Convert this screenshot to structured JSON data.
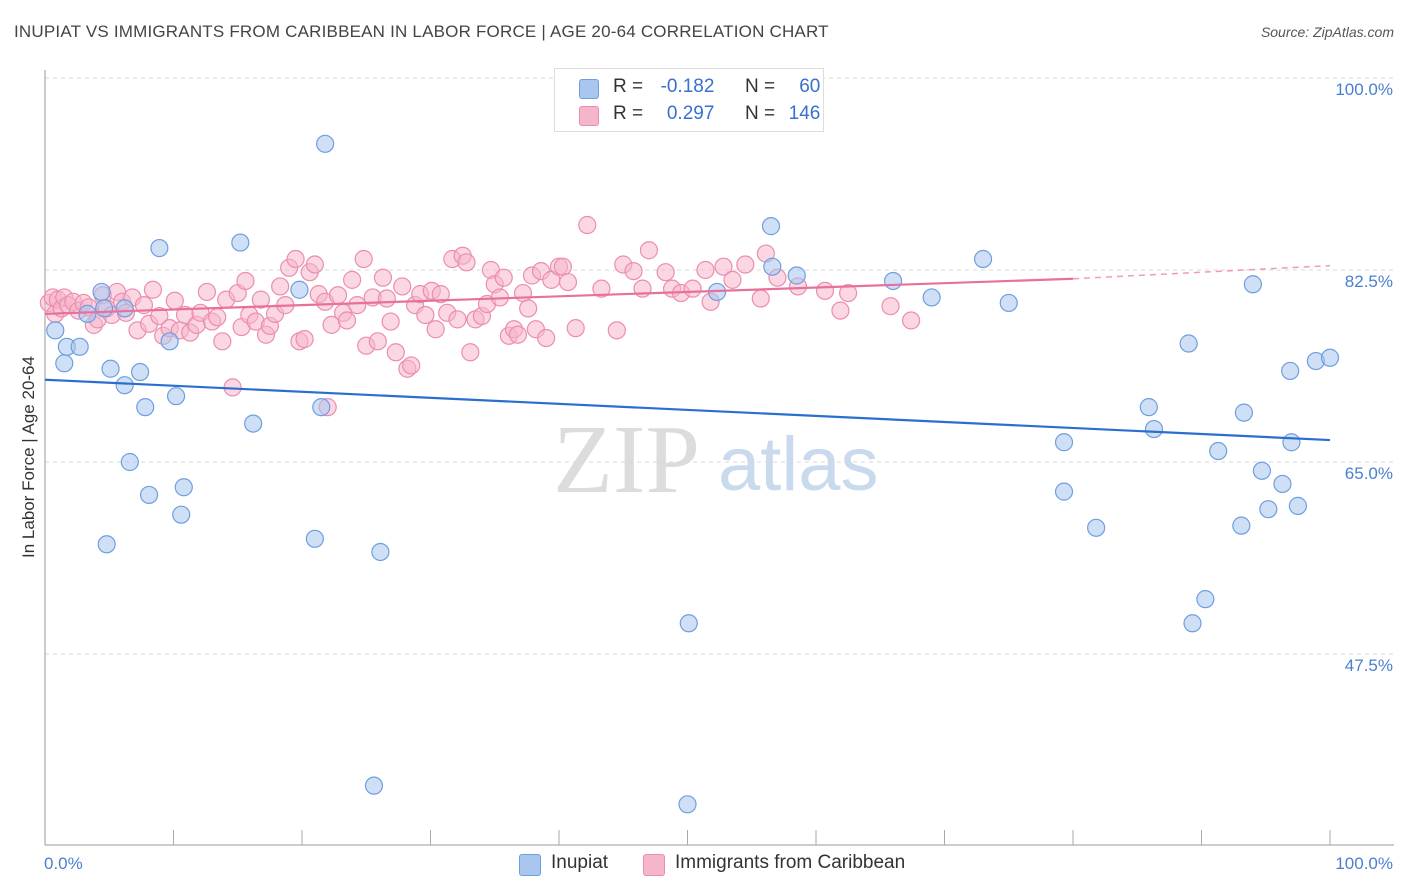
{
  "header": {
    "title": "INUPIAT VS IMMIGRANTS FROM CARIBBEAN IN LABOR FORCE | AGE 20-64 CORRELATION CHART",
    "source": "Source: ZipAtlas.com"
  },
  "watermark": {
    "zip": "ZIP",
    "atlas": "atlas"
  },
  "legend_top": {
    "rows": [
      {
        "r_label": "R =",
        "r_value": "-0.182",
        "n_label": "N =",
        "n_value": "60"
      },
      {
        "r_label": "R =",
        "r_value": "0.297",
        "n_label": "N =",
        "n_value": "146"
      }
    ]
  },
  "legend_bottom": {
    "items": [
      {
        "label": "Inupiat"
      },
      {
        "label": "Immigrants from Caribbean"
      }
    ]
  },
  "colors": {
    "blue_fill": "#a8c6ee",
    "blue_stroke": "#6e9ee0",
    "blue_line": "#2a6fd0",
    "pink_fill": "#f5b6ca",
    "pink_stroke": "#ec8db0",
    "pink_line": "#e8709c",
    "tick_text": "#4a7fd0",
    "grid": "#d8d8d8"
  },
  "chart_data": {
    "type": "scatter",
    "title": "INUPIAT VS IMMIGRANTS FROM CARIBBEAN IN LABOR FORCE | AGE 20-64 CORRELATION CHART",
    "xlabel": "",
    "ylabel": "In Labor Force | Age 20-64",
    "xlim": [
      0,
      100
    ],
    "ylim": [
      30,
      100
    ],
    "x_tick_labels": [
      "0.0%",
      "100.0%"
    ],
    "y_ticks": [
      47.5,
      65.0,
      82.5,
      100.0
    ],
    "y_tick_labels": [
      "47.5%",
      "65.0%",
      "82.5%",
      "100.0%"
    ],
    "grid": true,
    "legend_position": "top-center",
    "series": [
      {
        "name": "Inupiat",
        "color": "#a8c6ee",
        "trend": {
          "x": [
            0,
            100
          ],
          "y": [
            72.5,
            67.0
          ]
        },
        "points": [
          [
            0.8,
            77
          ],
          [
            1.5,
            74
          ],
          [
            1.7,
            75.5
          ],
          [
            2.7,
            75.5
          ],
          [
            3.3,
            78.5
          ],
          [
            4.4,
            80.5
          ],
          [
            4.6,
            79
          ],
          [
            4.8,
            57.5
          ],
          [
            5.1,
            73.5
          ],
          [
            6.2,
            79
          ],
          [
            6.2,
            72
          ],
          [
            6.6,
            65
          ],
          [
            7.4,
            73.2
          ],
          [
            7.8,
            70
          ],
          [
            8.1,
            62
          ],
          [
            8.9,
            84.5
          ],
          [
            9.7,
            76
          ],
          [
            10.2,
            71
          ],
          [
            10.8,
            62.7
          ],
          [
            10.6,
            60.2
          ],
          [
            15.2,
            85
          ],
          [
            16.2,
            68.5
          ],
          [
            19.8,
            80.7
          ],
          [
            21.0,
            58
          ],
          [
            21.5,
            70
          ],
          [
            21.8,
            94
          ],
          [
            25.6,
            35.5
          ],
          [
            26.1,
            56.8
          ],
          [
            50.0,
            33.8
          ],
          [
            50.1,
            50.3
          ],
          [
            52.3,
            80.5
          ],
          [
            56.5,
            86.5
          ],
          [
            56.6,
            82.8
          ],
          [
            58.5,
            82
          ],
          [
            66.0,
            81.5
          ],
          [
            69.0,
            80
          ],
          [
            73.0,
            83.5
          ],
          [
            75.0,
            79.5
          ],
          [
            79.3,
            66.8
          ],
          [
            79.3,
            62.3
          ],
          [
            81.8,
            59
          ],
          [
            85.9,
            70
          ],
          [
            86.3,
            68
          ],
          [
            89.0,
            75.8
          ],
          [
            89.3,
            50.3
          ],
          [
            90.3,
            52.5
          ],
          [
            91.3,
            66
          ],
          [
            93.3,
            69.5
          ],
          [
            93.1,
            59.2
          ],
          [
            94.0,
            81.2
          ],
          [
            94.7,
            64.2
          ],
          [
            95.2,
            60.7
          ],
          [
            96.3,
            63
          ],
          [
            96.9,
            73.3
          ],
          [
            97.0,
            66.8
          ],
          [
            97.5,
            61
          ],
          [
            98.9,
            74.2
          ],
          [
            100.0,
            74.5
          ]
        ]
      },
      {
        "name": "Immigrants from Caribbean",
        "color": "#f5b6ca",
        "trend": {
          "x": [
            0,
            80
          ],
          "y": [
            78.5,
            81.7
          ]
        },
        "trend_dashed": {
          "x": [
            80,
            100
          ],
          "y": [
            81.7,
            82.9
          ]
        },
        "points": [
          [
            0.3,
            79.5
          ],
          [
            0.6,
            80
          ],
          [
            0.8,
            78.5
          ],
          [
            1.0,
            79.8
          ],
          [
            1.3,
            79
          ],
          [
            1.5,
            80
          ],
          [
            1.8,
            79.3
          ],
          [
            2.2,
            79.6
          ],
          [
            2.6,
            78.8
          ],
          [
            3.0,
            79.5
          ],
          [
            3.4,
            79.1
          ],
          [
            3.8,
            77.5
          ],
          [
            4.1,
            78
          ],
          [
            4.5,
            80.2
          ],
          [
            4.8,
            79
          ],
          [
            5.2,
            78.4
          ],
          [
            5.6,
            80.5
          ],
          [
            6.0,
            79.6
          ],
          [
            6.3,
            78.6
          ],
          [
            6.8,
            80
          ],
          [
            7.2,
            77
          ],
          [
            7.7,
            79.3
          ],
          [
            8.1,
            77.6
          ],
          [
            8.4,
            80.7
          ],
          [
            8.9,
            78.3
          ],
          [
            9.2,
            76.5
          ],
          [
            9.7,
            77.2
          ],
          [
            10.1,
            79.7
          ],
          [
            10.5,
            77
          ],
          [
            10.9,
            78.4
          ],
          [
            11.3,
            76.8
          ],
          [
            11.8,
            77.5
          ],
          [
            12.1,
            78.6
          ],
          [
            12.6,
            80.5
          ],
          [
            13.0,
            77.8
          ],
          [
            13.4,
            78.2
          ],
          [
            13.8,
            76
          ],
          [
            14.1,
            79.8
          ],
          [
            14.6,
            71.8
          ],
          [
            15.0,
            80.4
          ],
          [
            15.3,
            77.3
          ],
          [
            15.6,
            81.5
          ],
          [
            15.9,
            78.4
          ],
          [
            16.4,
            77.8
          ],
          [
            16.8,
            79.8
          ],
          [
            17.2,
            76.6
          ],
          [
            17.5,
            77.4
          ],
          [
            17.9,
            78.5
          ],
          [
            18.3,
            81
          ],
          [
            18.7,
            79.3
          ],
          [
            19.0,
            82.7
          ],
          [
            19.5,
            83.5
          ],
          [
            19.8,
            76
          ],
          [
            20.2,
            76.2
          ],
          [
            20.6,
            82.3
          ],
          [
            21.0,
            83
          ],
          [
            21.3,
            80.3
          ],
          [
            21.8,
            79.6
          ],
          [
            22.0,
            70
          ],
          [
            22.3,
            77.5
          ],
          [
            22.8,
            80.2
          ],
          [
            23.2,
            78.6
          ],
          [
            23.5,
            77.9
          ],
          [
            23.9,
            81.6
          ],
          [
            24.3,
            79.3
          ],
          [
            24.8,
            83.5
          ],
          [
            25.0,
            75.6
          ],
          [
            25.5,
            80
          ],
          [
            25.9,
            76
          ],
          [
            26.3,
            81.8
          ],
          [
            26.6,
            79.9
          ],
          [
            26.9,
            77.8
          ],
          [
            27.3,
            75
          ],
          [
            27.8,
            81
          ],
          [
            28.2,
            73.5
          ],
          [
            28.5,
            73.8
          ],
          [
            28.8,
            79.3
          ],
          [
            29.2,
            80.3
          ],
          [
            29.6,
            78.4
          ],
          [
            30.1,
            80.6
          ],
          [
            30.4,
            77.1
          ],
          [
            30.8,
            80.3
          ],
          [
            31.3,
            78.6
          ],
          [
            31.7,
            83.5
          ],
          [
            32.1,
            78
          ],
          [
            32.5,
            83.8
          ],
          [
            32.8,
            83.2
          ],
          [
            33.1,
            75
          ],
          [
            33.5,
            78
          ],
          [
            34.0,
            78.3
          ],
          [
            34.4,
            79.4
          ],
          [
            34.7,
            82.5
          ],
          [
            35.0,
            81.2
          ],
          [
            35.4,
            80
          ],
          [
            35.7,
            81.8
          ],
          [
            36.1,
            76.5
          ],
          [
            36.5,
            77.1
          ],
          [
            36.8,
            76.6
          ],
          [
            37.2,
            80.4
          ],
          [
            37.6,
            79
          ],
          [
            37.9,
            82
          ],
          [
            38.2,
            77.1
          ],
          [
            38.6,
            82.4
          ],
          [
            39.0,
            76.3
          ],
          [
            39.4,
            81.6
          ],
          [
            40.0,
            82.8
          ],
          [
            40.3,
            82.8
          ],
          [
            40.7,
            81.4
          ],
          [
            41.3,
            77.2
          ],
          [
            42.2,
            86.6
          ],
          [
            43.3,
            80.8
          ],
          [
            44.5,
            77
          ],
          [
            45.0,
            83
          ],
          [
            45.8,
            82.4
          ],
          [
            46.5,
            80.8
          ],
          [
            47.0,
            84.3
          ],
          [
            48.3,
            82.3
          ],
          [
            48.8,
            80.8
          ],
          [
            49.5,
            80.4
          ],
          [
            50.4,
            80.8
          ],
          [
            51.4,
            82.5
          ],
          [
            51.8,
            79.6
          ],
          [
            52.8,
            82.8
          ],
          [
            53.5,
            81.6
          ],
          [
            54.5,
            83
          ],
          [
            55.7,
            79.9
          ],
          [
            56.1,
            84
          ],
          [
            57.0,
            81.8
          ],
          [
            58.6,
            81
          ],
          [
            60.7,
            80.6
          ],
          [
            61.9,
            78.8
          ],
          [
            62.5,
            80.4
          ],
          [
            65.8,
            79.2
          ],
          [
            67.4,
            77.9
          ]
        ]
      }
    ]
  }
}
